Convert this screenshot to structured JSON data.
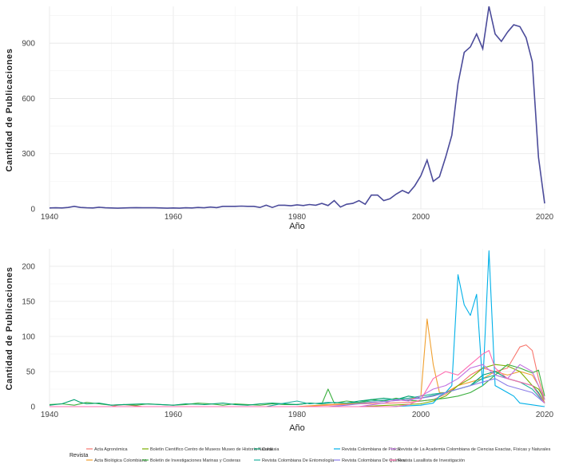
{
  "chart_data": [
    {
      "type": "line",
      "title": "",
      "xlabel": "Año",
      "ylabel": "Cantidad de Publicaciones",
      "xlim": [
        1940,
        2020
      ],
      "ylim": [
        0,
        1100
      ],
      "xticks": [
        1940,
        1960,
        1980,
        2000,
        2020
      ],
      "yticks": [
        0,
        300,
        600,
        900
      ],
      "grid": true,
      "color": "#4b4b9a",
      "series": [
        {
          "x": [
            1940,
            1941,
            1942,
            1943,
            1944,
            1945,
            1946,
            1947,
            1948,
            1949,
            1950,
            1951,
            1952,
            1953,
            1954,
            1955,
            1956,
            1957,
            1958,
            1959,
            1960,
            1961,
            1962,
            1963,
            1964,
            1965,
            1966,
            1967,
            1968,
            1969,
            1970,
            1971,
            1972,
            1973,
            1974,
            1975,
            1976,
            1977,
            1978,
            1979,
            1980,
            1981,
            1982,
            1983,
            1984,
            1985,
            1986,
            1987,
            1988,
            1989,
            1990,
            1991,
            1992,
            1993,
            1994,
            1995,
            1996,
            1997,
            1998,
            1999,
            2000,
            2001,
            2002,
            2003,
            2004,
            2005,
            2006,
            2007,
            2008,
            2009,
            2010,
            2011,
            2012,
            2013,
            2014,
            2015,
            2016,
            2017,
            2018,
            2019,
            2020
          ],
          "values": [
            5,
            6,
            5,
            8,
            14,
            8,
            6,
            5,
            9,
            6,
            5,
            4,
            5,
            6,
            7,
            6,
            6,
            6,
            5,
            4,
            5,
            4,
            6,
            5,
            8,
            6,
            10,
            7,
            14,
            14,
            14,
            15,
            14,
            14,
            8,
            20,
            8,
            20,
            20,
            17,
            22,
            18,
            24,
            20,
            30,
            18,
            45,
            10,
            25,
            30,
            45,
            25,
            75,
            75,
            45,
            55,
            80,
            100,
            85,
            125,
            180,
            265,
            150,
            175,
            280,
            400,
            680,
            850,
            880,
            950,
            870,
            1100,
            950,
            910,
            960,
            1000,
            990,
            930,
            800,
            280,
            30
          ]
        }
      ]
    },
    {
      "type": "line",
      "title": "",
      "xlabel": "Año",
      "ylabel": "Cantidad de Publicaciones",
      "xlim": [
        1940,
        2020
      ],
      "ylim": [
        0,
        225
      ],
      "xticks": [
        1940,
        1960,
        1980,
        2000,
        2020
      ],
      "yticks": [
        0,
        50,
        100,
        150,
        200
      ],
      "grid": true,
      "legend_title": "Revista",
      "legend_position": "bottom",
      "series": [
        {
          "name": "Acta Agronómica",
          "color": "#F8766D",
          "x": [
            1940,
            1950,
            1951,
            1952,
            1953,
            1954,
            1955,
            1960,
            1970,
            1980,
            1985,
            1990,
            1995,
            1998,
            2000,
            2002,
            2004,
            2006,
            2008,
            2010,
            2012,
            2014,
            2015,
            2016,
            2017,
            2018,
            2019,
            2020
          ],
          "values": [
            0,
            0,
            2,
            3,
            2,
            1,
            0,
            0,
            0,
            0,
            2,
            4,
            5,
            6,
            8,
            10,
            18,
            30,
            45,
            55,
            50,
            55,
            70,
            85,
            88,
            80,
            40,
            10
          ]
        },
        {
          "name": "Acta Biológica Colombiana",
          "color": "#F0A030",
          "x": [
            1940,
            1970,
            1980,
            1985,
            1990,
            1995,
            1998,
            2000,
            2001,
            2002,
            2003,
            2004,
            2006,
            2008,
            2010,
            2012,
            2014,
            2016,
            2018,
            2019,
            2020
          ],
          "values": [
            0,
            0,
            0,
            3,
            5,
            8,
            10,
            15,
            125,
            60,
            20,
            20,
            30,
            35,
            40,
            50,
            45,
            50,
            45,
            30,
            5
          ]
        },
        {
          "name": "Boletín Científico Centro de Museos Museo de Historia Natural",
          "color": "#7CAE00",
          "x": [
            1940,
            1990,
            1995,
            2000,
            2002,
            2004,
            2006,
            2008,
            2010,
            2012,
            2014,
            2016,
            2017,
            2018,
            2019,
            2020
          ],
          "values": [
            0,
            0,
            2,
            4,
            8,
            15,
            30,
            40,
            55,
            60,
            58,
            50,
            40,
            30,
            25,
            10
          ]
        },
        {
          "name": "Boletín de Investigaciones Marinas y Costeras",
          "color": "#3CB040",
          "x": [
            1940,
            1942,
            1944,
            1946,
            1948,
            1950,
            1952,
            1954,
            1956,
            1958,
            1960,
            1962,
            1964,
            1966,
            1968,
            1970,
            1972,
            1974,
            1976,
            1978,
            1980,
            1982,
            1984,
            1985,
            1986,
            1988,
            1990,
            1992,
            1994,
            1996,
            1998,
            2000,
            2002,
            2004,
            2006,
            2008,
            2010,
            2012,
            2014,
            2016,
            2018,
            2019,
            2020
          ],
          "values": [
            3,
            4,
            2,
            6,
            4,
            2,
            3,
            2,
            4,
            3,
            2,
            3,
            5,
            4,
            2,
            4,
            3,
            2,
            4,
            3,
            3,
            5,
            4,
            25,
            5,
            8,
            6,
            10,
            8,
            12,
            9,
            8,
            10,
            12,
            15,
            20,
            30,
            45,
            60,
            55,
            48,
            52,
            15
          ]
        },
        {
          "name": "Caldasia",
          "color": "#00A070",
          "x": [
            1940,
            1942,
            1944,
            1945,
            1946,
            1948,
            1950,
            1952,
            1955,
            1958,
            1960,
            1962,
            1965,
            1968,
            1970,
            1972,
            1974,
            1976,
            1978,
            1980,
            1982,
            1984,
            1986,
            1988,
            1990,
            1992,
            1994,
            1996,
            1998,
            2000,
            2002,
            2004,
            2006,
            2008,
            2010,
            2012,
            2014,
            2016,
            2018,
            2019,
            2020
          ],
          "values": [
            2,
            4,
            10,
            6,
            4,
            5,
            2,
            3,
            4,
            3,
            2,
            4,
            3,
            5,
            3,
            2,
            4,
            5,
            4,
            3,
            5,
            4,
            6,
            5,
            8,
            10,
            12,
            10,
            15,
            12,
            16,
            20,
            25,
            30,
            45,
            50,
            40,
            35,
            30,
            20,
            5
          ]
        },
        {
          "name": "Revista Colombiana De Entomología",
          "color": "#20B0A0",
          "x": [
            1940,
            1975,
            1978,
            1980,
            1982,
            1985,
            1988,
            1990,
            1992,
            1995,
            1998,
            2000,
            2002,
            2004,
            2006,
            2008,
            2010,
            2012,
            2014,
            2016,
            2018,
            2020
          ],
          "values": [
            0,
            0,
            5,
            8,
            4,
            6,
            5,
            6,
            8,
            10,
            12,
            15,
            18,
            20,
            25,
            30,
            40,
            45,
            40,
            35,
            25,
            5
          ]
        },
        {
          "name": "Revista Colombiana de Física",
          "color": "#00B0E8",
          "x": [
            1940,
            1995,
            2000,
            2002,
            2003,
            2004,
            2005,
            2006,
            2007,
            2008,
            2009,
            2010,
            2011,
            2012,
            2013,
            2014,
            2015,
            2016,
            2020
          ],
          "values": [
            0,
            0,
            2,
            5,
            15,
            20,
            30,
            188,
            145,
            130,
            160,
            30,
            222,
            30,
            25,
            20,
            15,
            5,
            0
          ]
        },
        {
          "name": "Revista Colombiana De Química",
          "color": "#8A7CE8",
          "x": [
            1940,
            1985,
            1988,
            1990,
            1992,
            1995,
            1998,
            2000,
            2002,
            2004,
            2006,
            2008,
            2010,
            2012,
            2014,
            2016,
            2018,
            2020
          ],
          "values": [
            0,
            0,
            2,
            4,
            6,
            8,
            10,
            12,
            15,
            20,
            25,
            30,
            35,
            40,
            30,
            25,
            20,
            5
          ]
        },
        {
          "name": "Revista de La Academia Colombiana de Ciencias Exactas, Físicas y Naturales",
          "color": "#C070E0",
          "x": [
            1940,
            1990,
            1994,
            1996,
            1998,
            2000,
            2002,
            2004,
            2006,
            2008,
            2010,
            2012,
            2014,
            2016,
            2018,
            2020
          ],
          "values": [
            0,
            0,
            5,
            10,
            8,
            15,
            25,
            30,
            40,
            55,
            60,
            45,
            40,
            60,
            50,
            10
          ]
        },
        {
          "name": "Revista Lasallista de Investigación",
          "color": "#FF6CB0",
          "x": [
            1940,
            1996,
            1998,
            2000,
            2002,
            2004,
            2006,
            2008,
            2010,
            2011,
            2012,
            2014,
            2016,
            2018,
            2020
          ],
          "values": [
            0,
            0,
            3,
            10,
            40,
            50,
            45,
            60,
            75,
            80,
            55,
            40,
            35,
            30,
            5
          ]
        }
      ]
    }
  ]
}
